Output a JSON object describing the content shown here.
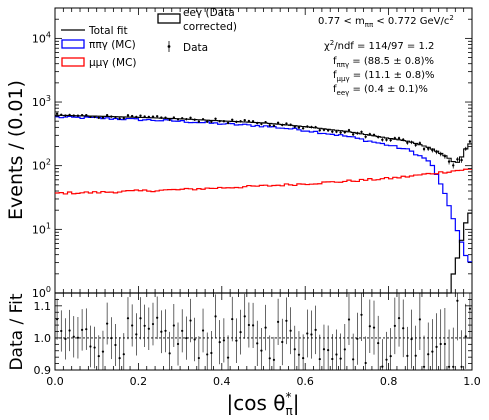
{
  "chart_data": [
    {
      "type": "histogram",
      "panel": "main",
      "ylabel": "Events / (0.01)",
      "yscale": "log",
      "ylim": [
        1,
        30000
      ],
      "xlim": [
        0,
        1
      ],
      "ytick_labels": [
        "10^0",
        "10^1",
        "10^2",
        "10^3",
        "10^4"
      ],
      "yticks": [
        1,
        10,
        100,
        1000,
        10000
      ],
      "legend": {
        "placement": "top-left",
        "entries": [
          {
            "label": "Total fit",
            "color": "#000000",
            "style": "line"
          },
          {
            "label": "ππγ (MC)",
            "color": "#0000ff",
            "style": "box"
          },
          {
            "label": "μμγ (MC)",
            "color": "#ff0000",
            "style": "box"
          },
          {
            "label": "eeγ (Data corrected)",
            "color": "#000000",
            "style": "box"
          },
          {
            "label": "Data",
            "color": "#000000",
            "style": "marker"
          }
        ]
      },
      "annotations": {
        "mass_range": "0.77 < m_ππ < 0.772 GeV/c²",
        "chi2": "χ²/ndf = 114/97 = 1.2",
        "f_pipigamma": "f_ππγ = (88.5 ± 0.8)%",
        "f_mumugamma": "f_μμγ = (11.1 ± 0.8)%",
        "f_eegamma": "f_eeγ = (0.4 ± 0.1)%"
      },
      "bins": {
        "start": 0.0,
        "width": 0.01,
        "count": 100
      },
      "series": [
        {
          "name": "ππγ (MC)",
          "color": "#0000ff",
          "shape_points": [
            [
              0,
              580
            ],
            [
              0.1,
              560
            ],
            [
              0.2,
              530
            ],
            [
              0.3,
              500
            ],
            [
              0.4,
              455
            ],
            [
              0.5,
              420
            ],
            [
              0.6,
              360
            ],
            [
              0.7,
              290
            ],
            [
              0.8,
              210
            ],
            [
              0.85,
              175
            ],
            [
              0.9,
              115
            ],
            [
              0.93,
              45
            ],
            [
              0.95,
              18
            ],
            [
              0.97,
              8
            ],
            [
              0.99,
              3
            ],
            [
              1.0,
              3
            ]
          ]
        },
        {
          "name": "μμγ (MC)",
          "color": "#ff0000",
          "shape_points": [
            [
              0,
              37
            ],
            [
              0.1,
              38
            ],
            [
              0.2,
              40
            ],
            [
              0.3,
              42
            ],
            [
              0.4,
              45
            ],
            [
              0.5,
              48
            ],
            [
              0.6,
              52
            ],
            [
              0.7,
              57
            ],
            [
              0.8,
              63
            ],
            [
              0.85,
              68
            ],
            [
              0.9,
              75
            ],
            [
              0.95,
              82
            ],
            [
              0.97,
              85
            ],
            [
              1.0,
              88
            ]
          ]
        },
        {
          "name": "eeγ (Data corrected)",
          "color": "#000000",
          "shape_points": [
            [
              0.85,
              0.5
            ],
            [
              0.949,
              0.5
            ],
            [
              0.95,
              1.6
            ],
            [
              0.96,
              2.6
            ],
            [
              0.97,
              4.7
            ],
            [
              0.98,
              9
            ],
            [
              0.99,
              18
            ],
            [
              1.0,
              18
            ]
          ]
        },
        {
          "name": "Total fit",
          "color": "#000000",
          "shape_points": [
            [
              0,
              620
            ],
            [
              0.1,
              600
            ],
            [
              0.2,
              575
            ],
            [
              0.3,
              545
            ],
            [
              0.4,
              505
            ],
            [
              0.5,
              470
            ],
            [
              0.6,
              410
            ],
            [
              0.7,
              345
            ],
            [
              0.8,
              270
            ],
            [
              0.85,
              240
            ],
            [
              0.9,
              190
            ],
            [
              0.93,
              150
            ],
            [
              0.95,
              125
            ],
            [
              0.96,
              108
            ],
            [
              0.97,
              118
            ],
            [
              0.98,
              160
            ],
            [
              0.99,
              210
            ],
            [
              1.0,
              230
            ]
          ]
        }
      ]
    },
    {
      "type": "scatter",
      "panel": "ratio",
      "ylabel": "Data / Fit",
      "ylim": [
        0.9,
        1.14
      ],
      "yticks": [
        0.9,
        1.0,
        1.1
      ],
      "ytick_labels": [
        "0.9",
        "1.0",
        "1.1"
      ],
      "reference_line": 1.0,
      "xlabel": "|cos θ*_π|",
      "xlim": [
        0,
        1
      ],
      "xticks": [
        0,
        0.2,
        0.4,
        0.6,
        0.8,
        1.0
      ],
      "xtick_labels": [
        "0.0",
        "0.2",
        "0.4",
        "0.6",
        "0.8",
        "1.0"
      ]
    }
  ]
}
